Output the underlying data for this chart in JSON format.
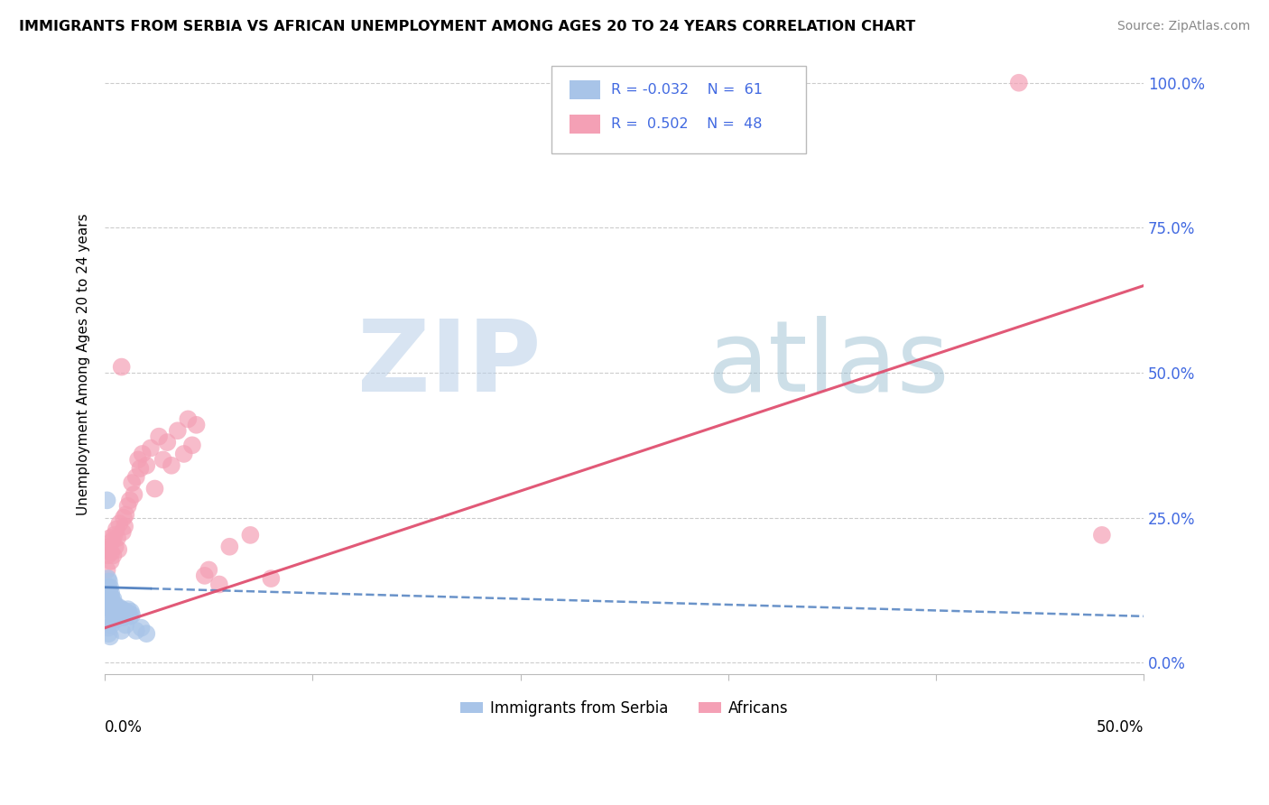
{
  "title": "IMMIGRANTS FROM SERBIA VS AFRICAN UNEMPLOYMENT AMONG AGES 20 TO 24 YEARS CORRELATION CHART",
  "source": "Source: ZipAtlas.com",
  "legend_label1": "Immigrants from Serbia",
  "legend_label2": "Africans",
  "R1": "-0.032",
  "N1": "61",
  "R2": "0.502",
  "N2": "48",
  "color_serbia": "#a8c4e8",
  "color_africa": "#f4a0b5",
  "color_serbia_line": "#5080c0",
  "color_africa_line": "#e05070",
  "color_axis_labels": "#4169e1",
  "serbia_x": [
    0.0008,
    0.001,
    0.0012,
    0.0015,
    0.0015,
    0.0018,
    0.002,
    0.002,
    0.0022,
    0.0022,
    0.0025,
    0.0025,
    0.0028,
    0.0028,
    0.003,
    0.003,
    0.0032,
    0.0032,
    0.0035,
    0.0035,
    0.0038,
    0.004,
    0.004,
    0.0042,
    0.0045,
    0.0045,
    0.0048,
    0.005,
    0.0052,
    0.0055,
    0.0058,
    0.006,
    0.0062,
    0.0065,
    0.0068,
    0.007,
    0.0075,
    0.0078,
    0.008,
    0.0085,
    0.009,
    0.0092,
    0.0095,
    0.01,
    0.0105,
    0.011,
    0.0115,
    0.012,
    0.0125,
    0.013,
    0.0015,
    0.0018,
    0.0022,
    0.0025,
    0.003,
    0.0055,
    0.008,
    0.01,
    0.015,
    0.0175,
    0.02
  ],
  "serbia_y": [
    0.1,
    0.28,
    0.12,
    0.13,
    0.145,
    0.11,
    0.095,
    0.14,
    0.125,
    0.115,
    0.13,
    0.105,
    0.115,
    0.095,
    0.12,
    0.1,
    0.11,
    0.09,
    0.105,
    0.085,
    0.095,
    0.11,
    0.088,
    0.1,
    0.095,
    0.078,
    0.09,
    0.1,
    0.085,
    0.095,
    0.088,
    0.092,
    0.08,
    0.09,
    0.085,
    0.095,
    0.088,
    0.082,
    0.092,
    0.085,
    0.09,
    0.078,
    0.085,
    0.088,
    0.082,
    0.092,
    0.085,
    0.08,
    0.088,
    0.082,
    0.06,
    0.05,
    0.07,
    0.045,
    0.065,
    0.075,
    0.055,
    0.065,
    0.055,
    0.06,
    0.05
  ],
  "africa_x": [
    0.001,
    0.0015,
    0.0018,
    0.0022,
    0.0025,
    0.0028,
    0.003,
    0.0035,
    0.004,
    0.0045,
    0.005,
    0.0055,
    0.006,
    0.0065,
    0.007,
    0.008,
    0.0085,
    0.009,
    0.0095,
    0.01,
    0.011,
    0.012,
    0.013,
    0.014,
    0.015,
    0.016,
    0.017,
    0.018,
    0.02,
    0.022,
    0.024,
    0.026,
    0.028,
    0.03,
    0.032,
    0.035,
    0.038,
    0.04,
    0.042,
    0.044,
    0.048,
    0.05,
    0.055,
    0.06,
    0.07,
    0.08,
    0.44,
    0.48
  ],
  "africa_y": [
    0.16,
    0.185,
    0.195,
    0.2,
    0.215,
    0.175,
    0.19,
    0.21,
    0.185,
    0.22,
    0.2,
    0.23,
    0.215,
    0.195,
    0.24,
    0.51,
    0.225,
    0.25,
    0.235,
    0.255,
    0.27,
    0.28,
    0.31,
    0.29,
    0.32,
    0.35,
    0.335,
    0.36,
    0.34,
    0.37,
    0.3,
    0.39,
    0.35,
    0.38,
    0.34,
    0.4,
    0.36,
    0.42,
    0.375,
    0.41,
    0.15,
    0.16,
    0.135,
    0.2,
    0.22,
    0.145,
    1.0,
    0.22
  ],
  "xlim": [
    0.0,
    0.5
  ],
  "ylim": [
    -0.02,
    1.05
  ],
  "yticks": [
    0.0,
    0.25,
    0.5,
    0.75,
    1.0
  ],
  "ytick_labels": [
    "0.0%",
    "25.0%",
    "50.0%",
    "75.0%",
    "100.0%"
  ],
  "serbia_trend": [
    0.13,
    0.08
  ],
  "africa_trend": [
    0.06,
    0.65
  ],
  "ylabel": "Unemployment Among Ages 20 to 24 years"
}
